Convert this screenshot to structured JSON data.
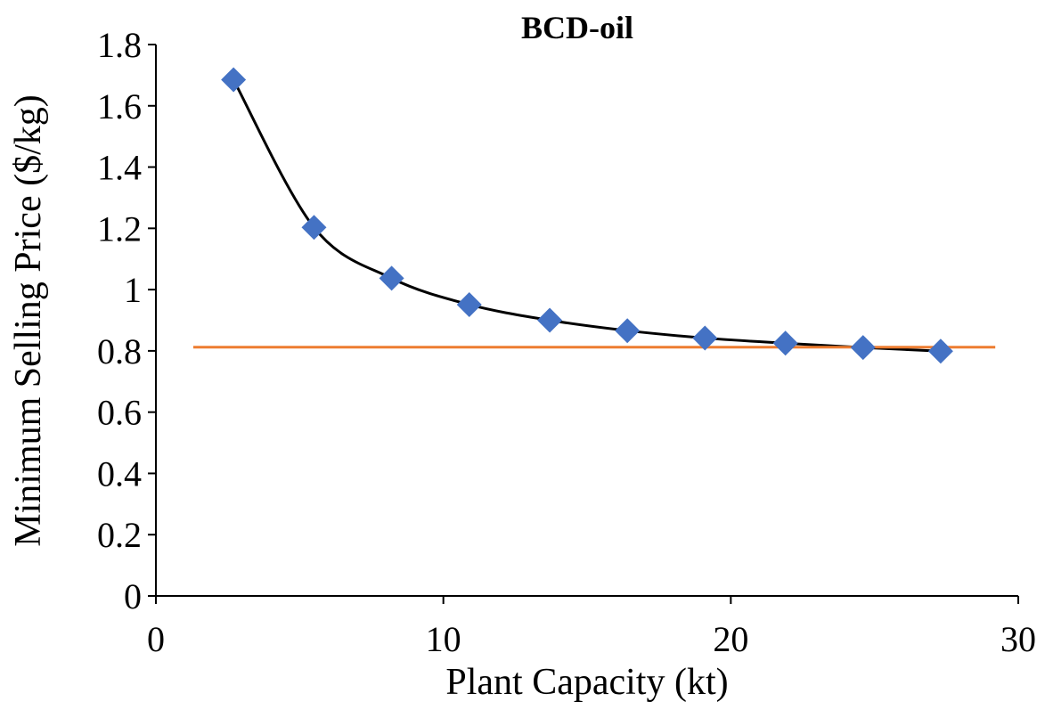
{
  "chart_data": {
    "type": "line",
    "title": "BCD-oil",
    "xlabel": "Plant Capacity (kt)",
    "ylabel": "Minimum Selling Price ($/kg)",
    "xlim": [
      0,
      30
    ],
    "ylim": [
      0,
      1.8
    ],
    "x_ticks": [
      "0",
      "10",
      "20",
      "30"
    ],
    "y_ticks": [
      "0",
      "0.2",
      "0.4",
      "0.6",
      "0.8",
      "1",
      "1.2",
      "1.4",
      "1.6",
      "1.8"
    ],
    "grid": false,
    "legend": "none",
    "series": [
      {
        "marker": "diamond",
        "x": [
          2.7,
          5.5,
          8.2,
          10.9,
          13.7,
          16.4,
          19.1,
          21.9,
          24.6,
          27.3
        ],
        "y": [
          1.685,
          1.203,
          1.037,
          0.951,
          0.9,
          0.866,
          0.842,
          0.825,
          0.811,
          0.799
        ]
      },
      {
        "type": "reference-line",
        "x": [
          1.3,
          29.2
        ],
        "y": [
          0.812,
          0.812
        ]
      }
    ],
    "colors": {
      "markers": "#4472C4",
      "curve": "#000000",
      "reference_line": "#ED7D31",
      "axes": "#000000"
    }
  }
}
